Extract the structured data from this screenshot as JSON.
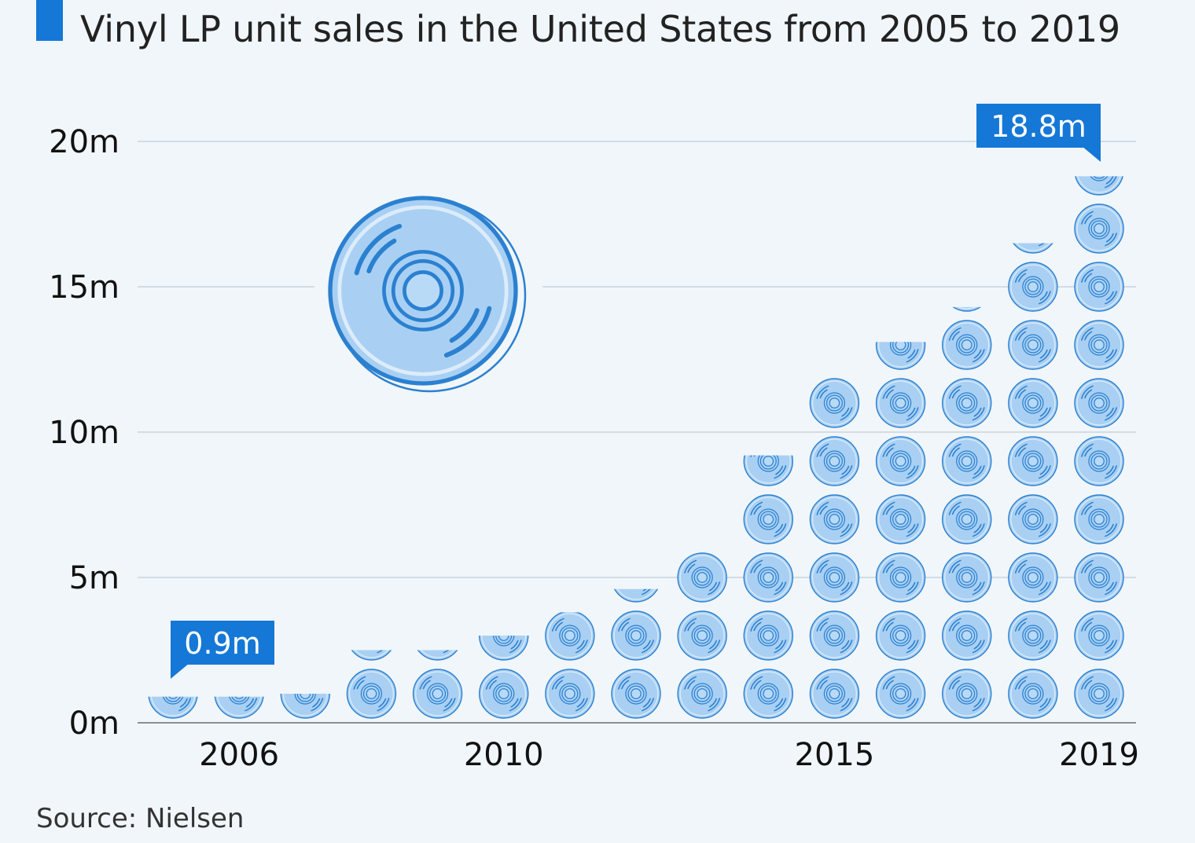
{
  "title": "Vinyl LP unit sales in the United States from 2005 to 2019",
  "source": "Source: Nielsen",
  "colors": {
    "accent": "#1578d6",
    "disc_fill": "#a9d0f3",
    "disc_stroke": "#2b80d0",
    "grid": "#c9d3db",
    "background": "#f1f6fa"
  },
  "chart_data": {
    "type": "bar",
    "style": "pictogram (stacked vinyl record icons, one icon per million units)",
    "title": "Vinyl LP unit sales in the United States from 2005 to 2019",
    "x": [
      2005,
      2006,
      2007,
      2008,
      2009,
      2010,
      2011,
      2012,
      2013,
      2014,
      2015,
      2016,
      2017,
      2018,
      2019
    ],
    "values": [
      0.9,
      0.9,
      1.0,
      2.5,
      2.5,
      3.0,
      3.8,
      4.6,
      6.1,
      9.2,
      11.9,
      13.1,
      14.3,
      16.5,
      18.8
    ],
    "unit": "m",
    "ylim": [
      0,
      20
    ],
    "y_ticks": [
      "0m",
      "5m",
      "10m",
      "15m",
      "20m"
    ],
    "x_tick_labels": [
      {
        "x": 2006,
        "label": "2006"
      },
      {
        "x": 2010,
        "label": "2010"
      },
      {
        "x": 2015,
        "label": "2015"
      },
      {
        "x": 2019,
        "label": "2019"
      }
    ],
    "annotations": [
      {
        "x": 2005,
        "label": "0.9m"
      },
      {
        "x": 2019,
        "label": "18.8m"
      }
    ],
    "grid": true,
    "legend": "none"
  }
}
